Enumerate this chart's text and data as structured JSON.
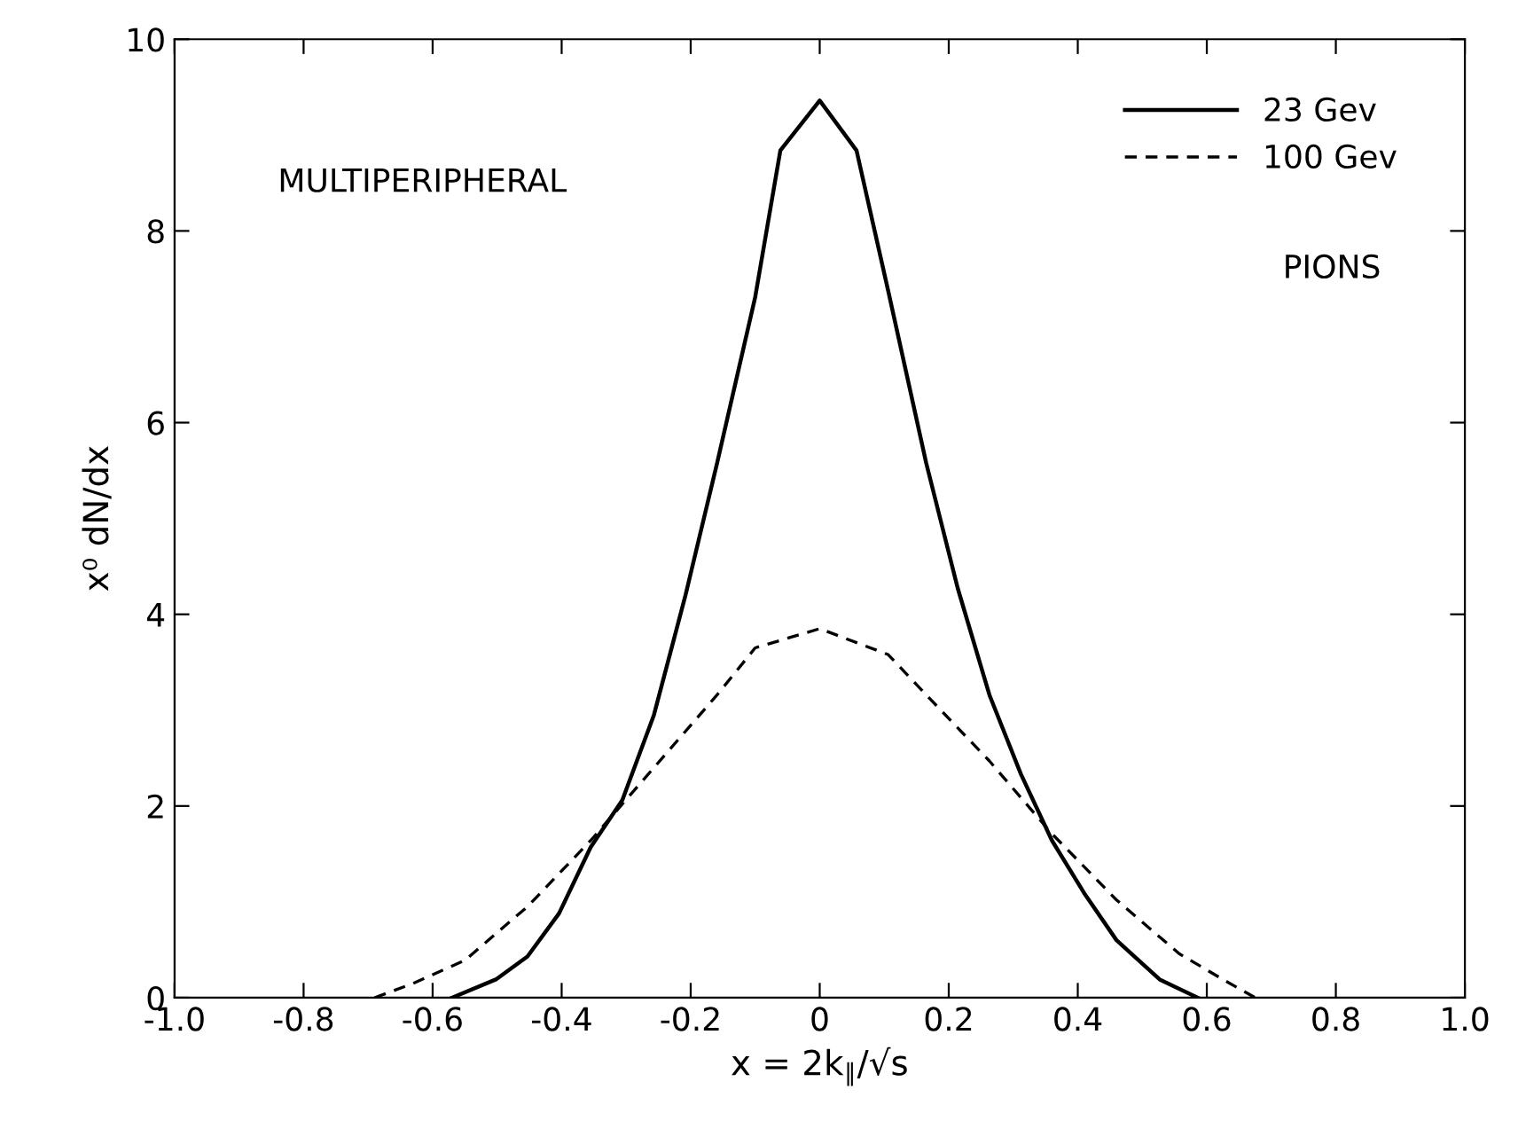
{
  "chart_data": {
    "type": "line",
    "xlabel": "x = 2k$_{∥}$/√s",
    "ylabel": "x⁰ dN/dx",
    "xlim": [
      -1.0,
      1.0
    ],
    "ylim": [
      0,
      10
    ],
    "xticks": [
      {
        "value": -1.0,
        "label": "-1.0"
      },
      {
        "value": -0.8,
        "label": "-0.8"
      },
      {
        "value": -0.6,
        "label": "-0.6"
      },
      {
        "value": -0.4,
        "label": "-0.4"
      },
      {
        "value": -0.2,
        "label": "-0.2"
      },
      0,
      0.2,
      0.4,
      0.6,
      0.8,
      {
        "value": 1.0,
        "label": "1.0"
      }
    ],
    "yticks": [
      0,
      2,
      4,
      6,
      8,
      10
    ],
    "grid": false,
    "legend": "top right",
    "marker": "none",
    "annotations": [
      "MULTIPERIPHERAL",
      "PIONS"
    ],
    "series": [
      {
        "name": "23 Gev",
        "color": "#000000",
        "line_style": "solid",
        "x": [
          -0.57,
          -0.502,
          -0.453,
          -0.404,
          -0.355,
          -0.306,
          -0.257,
          -0.208,
          -0.159,
          -0.1,
          -0.061,
          0,
          0.057,
          0.106,
          0.165,
          0.214,
          0.263,
          0.312,
          0.36,
          0.41,
          0.46,
          0.527,
          0.586
        ],
        "values": [
          0,
          0.19,
          0.43,
          0.88,
          1.57,
          2.06,
          2.95,
          4.2,
          5.58,
          7.31,
          8.84,
          9.36,
          8.84,
          7.38,
          5.58,
          4.27,
          3.16,
          2.33,
          1.64,
          1.09,
          0.6,
          0.19,
          0
        ]
      },
      {
        "name": "100 Gev",
        "color": "#000000",
        "line_style": "dashed",
        "x": [
          -0.69,
          -0.63,
          -0.55,
          -0.453,
          -0.355,
          -0.257,
          -0.159,
          -0.1,
          0,
          0.106,
          0.165,
          0.263,
          0.36,
          0.46,
          0.557,
          0.625,
          0.675
        ],
        "values": [
          0,
          0.15,
          0.39,
          0.95,
          1.64,
          2.4,
          3.16,
          3.65,
          3.85,
          3.58,
          3.16,
          2.47,
          1.71,
          1.02,
          0.46,
          0.19,
          0
        ]
      }
    ]
  }
}
